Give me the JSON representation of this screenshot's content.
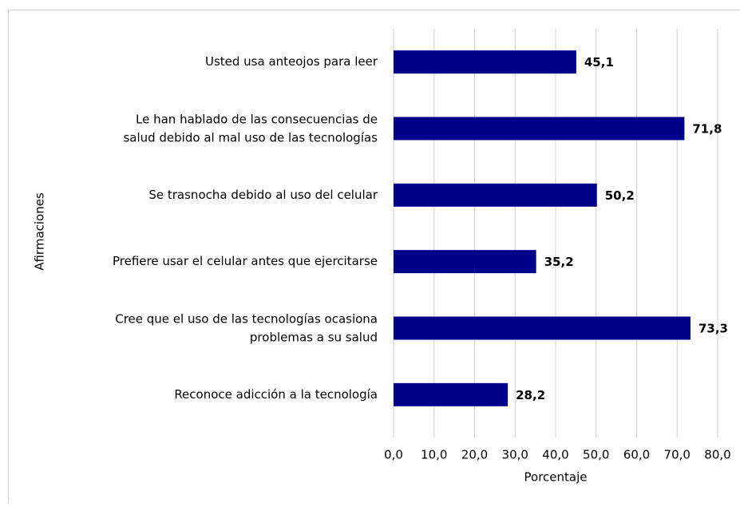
{
  "chart_data": {
    "type": "bar",
    "orientation": "horizontal",
    "categories": [
      "Usted usa anteojos para leer",
      "Le han hablado de las consecuencias de\nsalud debido al mal uso de las tecnologías",
      "Se trasnocha debido al uso del celular",
      "Prefiere usar el celular antes que ejercitarse",
      "Cree que el uso de las tecnologías ocasiona\nproblemas a su salud",
      "Reconoce adicción a la tecnología"
    ],
    "values": [
      45.1,
      71.8,
      50.2,
      35.2,
      73.3,
      28.2
    ],
    "value_labels": [
      "45,1",
      "71,8",
      "50,2",
      "35,2",
      "73,3",
      "28,2"
    ],
    "color": "#00008b",
    "xlabel": "Porcentaje",
    "ylabel": "Afirmaciones",
    "xlim": [
      0,
      80
    ],
    "xticks": [
      {
        "value": 0,
        "label": "0,0"
      },
      {
        "value": 10,
        "label": "10,0"
      },
      {
        "value": 20,
        "label": "20,0"
      },
      {
        "value": 30,
        "label": "30,0"
      },
      {
        "value": 40,
        "label": "40,0"
      },
      {
        "value": 50,
        "label": "50,0"
      },
      {
        "value": 60,
        "label": "60,0"
      },
      {
        "value": 70,
        "label": "70,0"
      },
      {
        "value": 80,
        "label": "80,0"
      }
    ],
    "grid": true
  }
}
